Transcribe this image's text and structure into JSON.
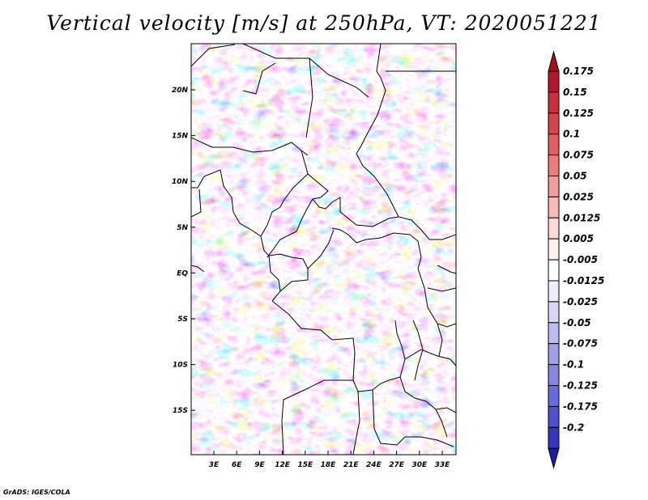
{
  "title": "Vertical velocity [m/s] at 250hPa, VT: 2020051221",
  "credit": "GrADS: IGES/COLA",
  "map": {
    "variable": "Vertical velocity",
    "units": "m/s",
    "level": "250hPa",
    "valid_time": "2020051221",
    "lon_ticks": [
      "3E",
      "6E",
      "9E",
      "12E",
      "15E",
      "18E",
      "21E",
      "24E",
      "27E",
      "30E",
      "33E"
    ],
    "lat_ticks": [
      "20N",
      "15N",
      "10N",
      "5N",
      "EQ",
      "5S",
      "10S",
      "15S"
    ]
  },
  "colorbar": {
    "labels": [
      "0.175",
      "0.15",
      "0.125",
      "0.1",
      "0.075",
      "0.05",
      "0.025",
      "0.0125",
      "0.005",
      "-0.005",
      "-0.0125",
      "-0.025",
      "-0.05",
      "-0.075",
      "-0.1",
      "-0.125",
      "-0.175",
      "-0.2"
    ],
    "colors": [
      "#a50f15",
      "#b2182b",
      "#c8303a",
      "#d6444d",
      "#e0605f",
      "#e97e7c",
      "#f09e9a",
      "#f6bcb8",
      "#fbd9d6",
      "#fdf0ef",
      "#ffffff",
      "#eeeefc",
      "#d6d6f7",
      "#bcbcf2",
      "#a0a0ec",
      "#8585e4",
      "#6a6adc",
      "#4f4fcf",
      "#3636bc",
      "#1c1ca6"
    ]
  }
}
